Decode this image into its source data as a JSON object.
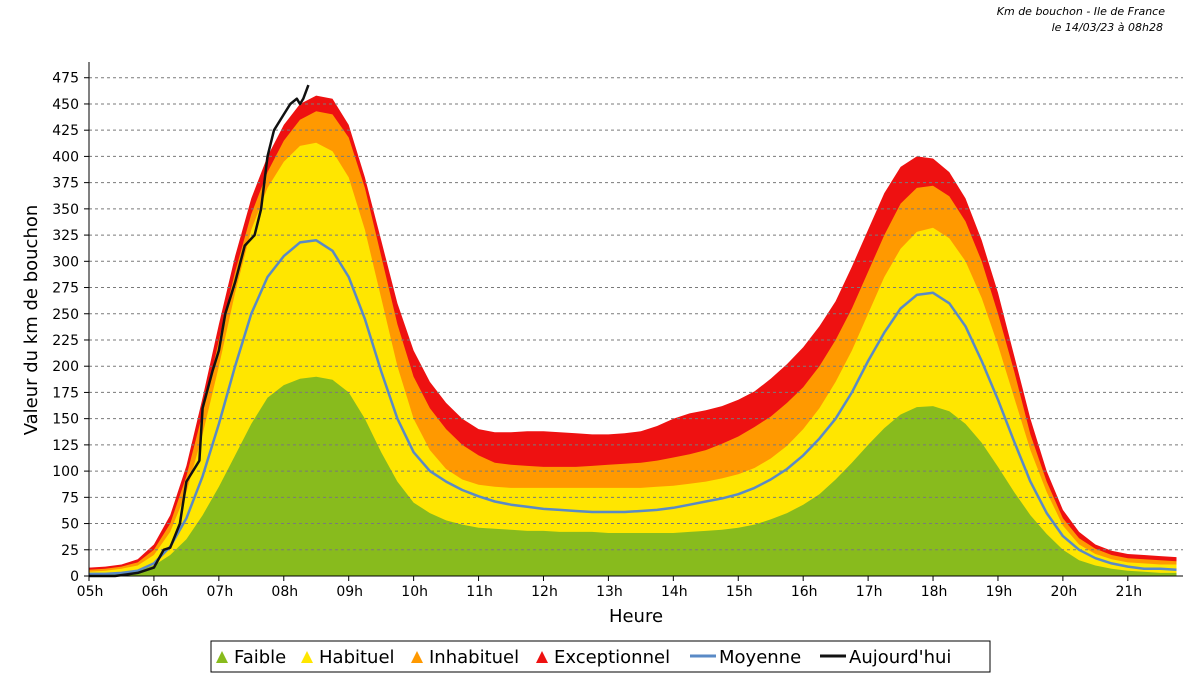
{
  "header": {
    "line1": "Km de bouchon - Ile de France",
    "line2": "le 14/03/23 à 08h28"
  },
  "chart_data": {
    "type": "area",
    "title": "Km de bouchon - Ile de France",
    "subtitle": "le 14/03/23 à 08h28",
    "xlabel": "Heure",
    "ylabel": "Valeur du  km de bouchon",
    "xlim": [
      5.0,
      21.85
    ],
    "ylim": [
      0,
      490
    ],
    "x_ticks": [
      5,
      6,
      7,
      8,
      9,
      10,
      11,
      12,
      13,
      14,
      15,
      16,
      17,
      18,
      19,
      20,
      21
    ],
    "x_tick_labels": [
      "05h",
      "06h",
      "07h",
      "08h",
      "09h",
      "10h",
      "11h",
      "12h",
      "13h",
      "14h",
      "15h",
      "16h",
      "17h",
      "18h",
      "19h",
      "20h",
      "21h"
    ],
    "y_ticks": [
      0,
      25,
      50,
      75,
      100,
      125,
      150,
      175,
      200,
      225,
      250,
      275,
      300,
      325,
      350,
      375,
      400,
      425,
      450,
      475
    ],
    "grid": true,
    "legend_position": "bottom",
    "x": [
      5.0,
      5.25,
      5.5,
      5.75,
      6.0,
      6.25,
      6.5,
      6.75,
      7.0,
      7.25,
      7.5,
      7.75,
      8.0,
      8.25,
      8.5,
      8.75,
      9.0,
      9.25,
      9.5,
      9.75,
      10.0,
      10.25,
      10.5,
      10.75,
      11.0,
      11.25,
      11.5,
      11.75,
      12.0,
      12.25,
      12.5,
      12.75,
      13.0,
      13.25,
      13.5,
      13.75,
      14.0,
      14.25,
      14.5,
      14.75,
      15.0,
      15.25,
      15.5,
      15.75,
      16.0,
      16.25,
      16.5,
      16.75,
      17.0,
      17.25,
      17.5,
      17.75,
      18.0,
      18.25,
      18.5,
      18.75,
      19.0,
      19.25,
      19.5,
      19.75,
      20.0,
      20.25,
      20.5,
      20.75,
      21.0,
      21.25,
      21.5,
      21.75
    ],
    "series": [
      {
        "name": "Exceptionnel",
        "color": "#ee1111",
        "kind": "band",
        "values": [
          8,
          9,
          11,
          16,
          30,
          58,
          105,
          170,
          240,
          305,
          360,
          400,
          430,
          450,
          458,
          455,
          430,
          380,
          320,
          260,
          215,
          185,
          165,
          150,
          140,
          137,
          137,
          138,
          138,
          137,
          136,
          135,
          135,
          136,
          138,
          143,
          150,
          155,
          158,
          162,
          168,
          176,
          188,
          202,
          218,
          238,
          262,
          295,
          330,
          365,
          390,
          400,
          398,
          385,
          360,
          320,
          270,
          210,
          150,
          100,
          63,
          42,
          30,
          24,
          21,
          20,
          19,
          18
        ]
      },
      {
        "name": "Inhabituel",
        "color": "#ff9900",
        "kind": "band",
        "values": [
          6,
          7,
          9,
          13,
          25,
          50,
          95,
          155,
          225,
          290,
          345,
          385,
          415,
          435,
          443,
          440,
          418,
          370,
          305,
          240,
          190,
          160,
          140,
          125,
          115,
          108,
          106,
          105,
          104,
          104,
          104,
          105,
          106,
          107,
          108,
          110,
          113,
          116,
          120,
          126,
          133,
          142,
          152,
          165,
          180,
          200,
          225,
          255,
          290,
          325,
          355,
          370,
          372,
          362,
          338,
          300,
          250,
          195,
          135,
          90,
          55,
          36,
          26,
          20,
          17,
          16,
          15,
          14
        ]
      },
      {
        "name": "Habituel",
        "color": "#ffe600",
        "kind": "band",
        "values": [
          4,
          5,
          7,
          10,
          20,
          42,
          80,
          135,
          200,
          270,
          330,
          370,
          395,
          410,
          413,
          405,
          380,
          330,
          265,
          200,
          150,
          120,
          102,
          92,
          87,
          85,
          84,
          84,
          84,
          84,
          84,
          84,
          84,
          84,
          84,
          85,
          86,
          88,
          90,
          93,
          97,
          103,
          112,
          124,
          140,
          160,
          185,
          215,
          250,
          285,
          312,
          328,
          332,
          322,
          300,
          265,
          220,
          170,
          120,
          80,
          48,
          30,
          21,
          16,
          13,
          12,
          11,
          11
        ]
      },
      {
        "name": "Faible",
        "color": "#88bb1d",
        "kind": "band",
        "values": [
          2,
          2,
          3,
          5,
          10,
          20,
          35,
          58,
          85,
          115,
          145,
          170,
          182,
          188,
          190,
          187,
          175,
          150,
          118,
          90,
          70,
          60,
          53,
          49,
          46,
          45,
          44,
          43,
          43,
          42,
          42,
          42,
          41,
          41,
          41,
          41,
          41,
          42,
          43,
          44,
          46,
          49,
          54,
          60,
          68,
          78,
          92,
          108,
          125,
          141,
          154,
          161,
          162,
          157,
          145,
          127,
          104,
          80,
          58,
          40,
          25,
          15,
          10,
          7,
          5,
          4,
          3,
          3
        ]
      },
      {
        "name": "Moyenne",
        "color": "#5a8ac6",
        "kind": "line",
        "values": [
          2,
          2,
          3,
          5,
          12,
          28,
          55,
          95,
          145,
          200,
          250,
          285,
          305,
          318,
          320,
          310,
          285,
          245,
          195,
          150,
          118,
          100,
          90,
          82,
          76,
          71,
          68,
          66,
          64,
          63,
          62,
          61,
          61,
          61,
          62,
          63,
          65,
          68,
          71,
          74,
          78,
          84,
          92,
          102,
          115,
          131,
          150,
          175,
          205,
          232,
          255,
          268,
          270,
          260,
          238,
          205,
          168,
          128,
          90,
          60,
          38,
          25,
          17,
          12,
          9,
          7,
          7,
          6
        ]
      },
      {
        "name": "Aujourd'hui",
        "color": "#111111",
        "kind": "line",
        "x": [
          5.0,
          5.4,
          5.75,
          6.0,
          6.15,
          6.25,
          6.4,
          6.5,
          6.6,
          6.7,
          6.75,
          6.9,
          7.0,
          7.1,
          7.25,
          7.4,
          7.55,
          7.65,
          7.75,
          7.85,
          8.0,
          8.1,
          8.2,
          8.25,
          8.3,
          8.38
        ],
        "values": [
          0,
          0,
          3,
          8,
          25,
          27,
          50,
          90,
          100,
          110,
          160,
          195,
          215,
          250,
          280,
          315,
          325,
          350,
          400,
          425,
          440,
          450,
          455,
          450,
          455,
          468
        ]
      }
    ]
  },
  "legend": {
    "items": [
      {
        "label": "Faible",
        "color": "#88bb1d",
        "type": "marker"
      },
      {
        "label": "Habituel",
        "color": "#ffe600",
        "type": "marker"
      },
      {
        "label": "Inhabituel",
        "color": "#ff9900",
        "type": "marker"
      },
      {
        "label": "Exceptionnel",
        "color": "#ee1111",
        "type": "marker"
      },
      {
        "label": "Moyenne",
        "color": "#5a8ac6",
        "type": "line"
      },
      {
        "label": "Aujourd'hui",
        "color": "#111111",
        "type": "line"
      }
    ]
  }
}
